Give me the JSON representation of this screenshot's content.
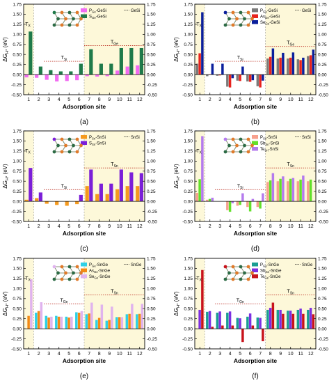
{
  "chart_data": [
    {
      "type": "bar",
      "panel_label": "(a)",
      "xlabel": "Adsorption site",
      "ylabel": "ΔG_H* (eV)",
      "ylim": [
        -0.5,
        1.75
      ],
      "yticks": [
        -0.5,
        -0.25,
        0.0,
        0.25,
        0.5,
        0.75,
        1.0,
        1.25,
        1.5,
        1.75
      ],
      "categories": [
        "1",
        "2",
        "3",
        "4",
        "5",
        "6",
        "7",
        "8",
        "9",
        "10",
        "11",
        "12"
      ],
      "series": [
        {
          "name": "P_Ge-GeSi",
          "color": "#f26bf2",
          "values": [
            -0.07,
            -0.08,
            -0.13,
            -0.17,
            -0.16,
            -0.14,
            -0.04,
            -0.05,
            -0.04,
            0.1,
            0.2,
            0.23
          ]
        },
        {
          "name": "S_Ge-GeSi",
          "color": "#1f7a4a",
          "values": [
            1.07,
            0.2,
            0.11,
            0.08,
            0.08,
            0.27,
            0.63,
            0.27,
            0.27,
            0.66,
            0.66,
            0.66
          ]
        }
      ],
      "reference_lines": [
        {
          "name": "GeSi",
          "label": "T_Si",
          "from": 2.5,
          "to": 6.5,
          "value": 0.33
        },
        {
          "name": "GeSi",
          "label": "T_Ge",
          "from": 6.5,
          "to": 12.5,
          "value": 0.72
        }
      ],
      "highlight_label": "T_X",
      "legend": "top-right"
    },
    {
      "type": "bar",
      "panel_label": "(b)",
      "xlabel": "Adsorption site",
      "ylabel": "ΔG_H* (eV)",
      "ylim": [
        -0.5,
        1.75
      ],
      "yticks": [
        -0.5,
        -0.25,
        0.0,
        0.25,
        0.5,
        0.75,
        1.0,
        1.25,
        1.5,
        1.75
      ],
      "categories": [
        "1",
        "2",
        "3",
        "4",
        "5",
        "6",
        "7",
        "8",
        "9",
        "10",
        "11",
        "12"
      ],
      "series": [
        {
          "name": "P_Ge-GeSi",
          "color": "#7a7a7a",
          "values": [
            0.27,
            -0.04,
            -0.03,
            -0.3,
            -0.15,
            -0.17,
            -0.29,
            0.4,
            0.4,
            0.4,
            0.38,
            0.46
          ]
        },
        {
          "name": "As_Ge-GeSi",
          "color": "#e8231e",
          "values": [
            0.53,
            0.01,
            -0.02,
            -0.32,
            -0.16,
            -0.18,
            -0.32,
            0.44,
            0.42,
            0.42,
            0.36,
            0.48
          ]
        },
        {
          "name": "Se_Ge-GeSi",
          "color": "#0b1f9c",
          "values": [
            1.55,
            0.27,
            0.27,
            -0.09,
            0.2,
            -0.14,
            -0.15,
            0.65,
            0.54,
            0.55,
            0.42,
            0.62
          ]
        }
      ],
      "reference_lines": [
        {
          "name": "GeSi",
          "label": "T_Si",
          "from": 2.5,
          "to": 7.5,
          "value": 0.33
        },
        {
          "name": "GeSi",
          "label": "T_Ge",
          "from": 7.5,
          "to": 12.5,
          "value": 0.7
        }
      ],
      "highlight_label": "T_X",
      "legend": "top-right"
    },
    {
      "type": "bar",
      "panel_label": "(c)",
      "xlabel": "Adsorption site",
      "ylabel": "ΔG_H* (eV)",
      "ylim": [
        -0.5,
        1.75
      ],
      "yticks": [
        -0.5,
        -0.25,
        0.0,
        0.25,
        0.5,
        0.75,
        1.0,
        1.25,
        1.5,
        1.75
      ],
      "categories": [
        "1",
        "2",
        "3",
        "4",
        "5",
        "6",
        "7",
        "8",
        "9",
        "10",
        "11",
        "12"
      ],
      "series": [
        {
          "name": "P_Sn-SnSi",
          "color": "#f59a1e",
          "values": [
            0.04,
            0.08,
            -0.06,
            -0.09,
            -0.11,
            -0.07,
            0.38,
            0.18,
            0.18,
            0.3,
            0.38,
            0.38
          ]
        },
        {
          "name": "S_Sn-SnSi",
          "color": "#7b1fd8",
          "values": [
            0.83,
            0.22,
            0.0,
            0.0,
            0.0,
            0.16,
            0.79,
            0.44,
            0.44,
            0.79,
            0.72,
            0.7
          ]
        }
      ],
      "reference_lines": [
        {
          "name": "SnSi",
          "label": "T_Si",
          "from": 2.5,
          "to": 6.5,
          "value": 0.29
        },
        {
          "name": "SnSi",
          "label": "T_Sn",
          "from": 6.5,
          "to": 12.5,
          "value": 0.83
        }
      ],
      "highlight_label": "T_X",
      "legend": "top-right"
    },
    {
      "type": "bar",
      "panel_label": "(d)",
      "xlabel": "Adsorption site",
      "ylabel": "ΔG_H* (eV)",
      "ylim": [
        -0.5,
        1.75
      ],
      "yticks": [
        -0.5,
        -0.25,
        0.0,
        0.25,
        0.5,
        0.75,
        1.0,
        1.25,
        1.5,
        1.75
      ],
      "categories": [
        "1",
        "2",
        "3",
        "4",
        "5",
        "6",
        "7",
        "8",
        "9",
        "10",
        "11",
        "12"
      ],
      "series": [
        {
          "name": "P_Sn-SnSi",
          "color": "#f7a08e",
          "values": [
            0.21,
            0.04,
            0.0,
            -0.22,
            -0.11,
            -0.14,
            -0.14,
            0.48,
            0.5,
            0.5,
            0.5,
            0.5
          ]
        },
        {
          "name": "Sb_Sn-SnSi",
          "color": "#62e02a",
          "values": [
            0.55,
            0.06,
            0.0,
            -0.26,
            -0.09,
            -0.25,
            -0.18,
            0.52,
            0.56,
            0.56,
            0.54,
            0.54
          ]
        },
        {
          "name": "Te_Sn-SnSi",
          "color": "#b47bee",
          "values": [
            1.62,
            0.09,
            0.0,
            -0.05,
            0.2,
            0.06,
            0.2,
            0.7,
            0.62,
            0.58,
            0.64,
            0.0
          ]
        }
      ],
      "reference_lines": [
        {
          "name": "SnSi",
          "label": "T_Si",
          "from": 2.5,
          "to": 7.5,
          "value": 0.29
        },
        {
          "name": "SnSi",
          "label": "T_Sn",
          "from": 7.5,
          "to": 12.5,
          "value": 0.83
        }
      ],
      "highlight_label": "T_X",
      "legend": "top-right"
    },
    {
      "type": "bar",
      "panel_label": "(e)",
      "xlabel": "Adsorption site",
      "ylabel": "ΔG_H* (eV)",
      "ylim": [
        -0.5,
        1.75
      ],
      "yticks": [
        -0.5,
        -0.25,
        0.0,
        0.25,
        0.5,
        0.75,
        1.0,
        1.25,
        1.5,
        1.75
      ],
      "categories": [
        "1",
        "2",
        "3",
        "4",
        "5",
        "6",
        "7",
        "8",
        "9",
        "10",
        "11",
        "12"
      ],
      "series": [
        {
          "name": "P_Ge-SnGe",
          "color": "#2ed0e6",
          "values": [
            0.0,
            0.4,
            0.32,
            0.32,
            0.3,
            0.41,
            0.36,
            0.22,
            0.2,
            0.29,
            0.36,
            0.36
          ]
        },
        {
          "name": "As_Ge-SnGe",
          "color": "#f28a14",
          "values": [
            0.32,
            0.44,
            0.28,
            0.3,
            0.28,
            0.4,
            0.38,
            0.27,
            0.22,
            0.29,
            0.37,
            0.37
          ]
        },
        {
          "name": "Se_Ge-SnGe",
          "color": "#e0b3ee",
          "values": [
            1.23,
            0.66,
            0.3,
            0.3,
            0.3,
            0.44,
            0.65,
            0.6,
            0.55,
            0.29,
            0.62,
            0.62
          ]
        }
      ],
      "reference_lines": [
        {
          "name": "SnGe",
          "label": "T_Ge",
          "from": 2.5,
          "to": 6.5,
          "value": 0.62
        },
        {
          "name": "SnGe",
          "label": "T_Sn",
          "from": 6.5,
          "to": 12.5,
          "value": 0.84
        }
      ],
      "highlight_label": "T_X",
      "legend": "top-right"
    },
    {
      "type": "bar",
      "panel_label": "(f)",
      "xlabel": "Adsorption site",
      "ylabel": "ΔG_H* (eV)",
      "ylim": [
        -0.5,
        1.75
      ],
      "yticks": [
        -0.5,
        -0.25,
        0.0,
        0.25,
        0.5,
        0.75,
        1.0,
        1.25,
        1.5,
        1.75
      ],
      "categories": [
        "1",
        "2",
        "3",
        "4",
        "5",
        "6",
        "7",
        "8",
        "9",
        "10",
        "11",
        "12"
      ],
      "series": [
        {
          "name": "P_Ge-SnGe",
          "color": "#1a9e93",
          "values": [
            0.0,
            0.42,
            0.4,
            0.4,
            0.27,
            0.3,
            0.28,
            0.47,
            0.47,
            0.45,
            0.47,
            0.47
          ]
        },
        {
          "name": "Sb_Ge-SnGe",
          "color": "#7d2fe2",
          "values": [
            0.47,
            0.44,
            0.43,
            0.43,
            0.26,
            0.38,
            0.27,
            0.52,
            0.47,
            0.45,
            0.5,
            0.52
          ]
        },
        {
          "name": "Te_Ge-SnGe",
          "color": "#c8131b",
          "values": [
            1.46,
            0.05,
            0.08,
            0.08,
            -0.33,
            0.08,
            -0.31,
            0.65,
            0.37,
            0.37,
            0.37,
            0.36
          ]
        }
      ],
      "reference_lines": [
        {
          "name": "SnGe",
          "label": "T_Ge",
          "from": 2.5,
          "to": 7.5,
          "value": 0.62
        },
        {
          "name": "SnGe",
          "label": "T_Sn",
          "from": 7.5,
          "to": 12.5,
          "value": 0.84
        }
      ],
      "highlight_label": "T_X",
      "legend": "top-right"
    }
  ]
}
